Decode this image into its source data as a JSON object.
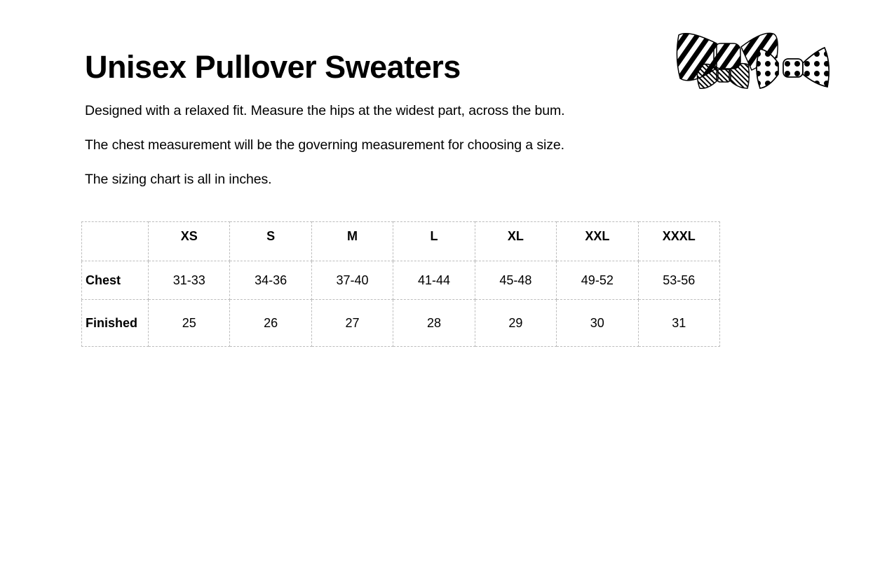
{
  "title": "Unisex Pullover Sweaters",
  "paragraphs": [
    "Designed with a relaxed fit. Measure the hips at the widest part, across the bum.",
    "The chest measurement will be the governing measurement for choosing a size.",
    "The sizing chart is all in inches."
  ],
  "logo": {
    "icon": "bow-ties-illustration"
  },
  "table": {
    "headers": [
      "",
      "XS",
      "S",
      "M",
      "L",
      "XL",
      "XXL",
      "XXXL"
    ],
    "rows": [
      {
        "label": "Chest",
        "values": [
          "31-33",
          "34-36",
          "37-40",
          "41-44",
          "45-48",
          "49-52",
          "53-56"
        ]
      },
      {
        "label": "Finished",
        "values": [
          "25",
          "26",
          "27",
          "28",
          "29",
          "30",
          "31"
        ]
      }
    ]
  }
}
